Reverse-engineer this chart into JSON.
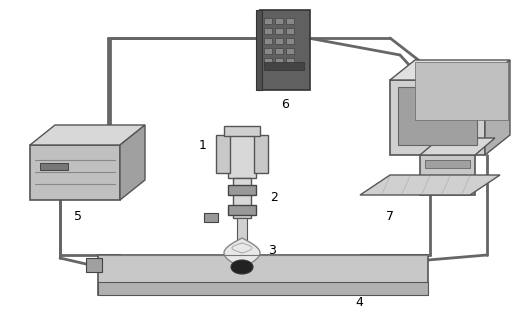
{
  "background_color": "#ffffff",
  "fig_width": 5.21,
  "fig_height": 3.2,
  "dpi": 100,
  "wire_color": "#666666",
  "wire_lw": 2.0,
  "label_fontsize": 9,
  "comp_fc": "#b8b8b8",
  "comp_ec": "#555555",
  "dark_fc": "#888888",
  "dark_ec": "#444444"
}
